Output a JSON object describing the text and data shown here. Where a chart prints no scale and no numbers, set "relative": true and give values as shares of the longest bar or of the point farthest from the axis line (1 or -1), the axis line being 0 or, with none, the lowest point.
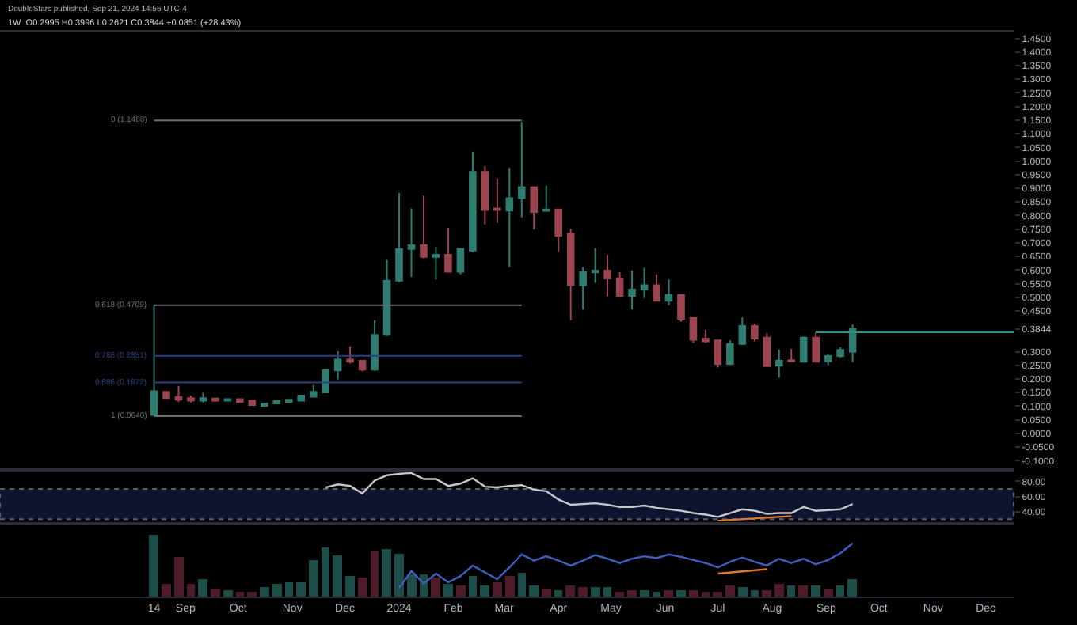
{
  "chart_data": [
    {
      "type": "candlestick",
      "annotations": [
        "DoubleStars published, Sep 21, 2024 14:56 UTC-4",
        "1W  O0.2995 H0.3996 L0.2621 C0.3844 +0.0851 (+28.43%)"
      ],
      "x": [
        "2023-08-14",
        "2023-08-21",
        "2023-08-28",
        "2023-09-04",
        "2023-09-11",
        "2023-09-18",
        "2023-09-25",
        "2023-10-02",
        "2023-10-09",
        "2023-10-16",
        "2023-10-23",
        "2023-10-30",
        "2023-11-06",
        "2023-11-13",
        "2023-11-20",
        "2023-11-27",
        "2023-12-04",
        "2023-12-11",
        "2023-12-18",
        "2023-12-25",
        "2024-01-01",
        "2024-01-08",
        "2024-01-15",
        "2024-01-22",
        "2024-01-29",
        "2024-02-05",
        "2024-02-12",
        "2024-02-19",
        "2024-02-26",
        "2024-03-04",
        "2024-03-11",
        "2024-03-18",
        "2024-03-25",
        "2024-04-01",
        "2024-04-08",
        "2024-04-15",
        "2024-04-22",
        "2024-04-29",
        "2024-05-06",
        "2024-05-13",
        "2024-05-20",
        "2024-05-27",
        "2024-06-03",
        "2024-06-10",
        "2024-06-17",
        "2024-06-24",
        "2024-07-01",
        "2024-07-08",
        "2024-07-15",
        "2024-07-22",
        "2024-07-29",
        "2024-08-05",
        "2024-08-12",
        "2024-08-19",
        "2024-08-26",
        "2024-09-02",
        "2024-09-09",
        "2024-09-16"
      ],
      "ohlc": [
        [
          0.068,
          0.474,
          0.064,
          0.155
        ],
        [
          0.153,
          0.155,
          0.128,
          0.13
        ],
        [
          0.134,
          0.175,
          0.116,
          0.124
        ],
        [
          0.13,
          0.139,
          0.114,
          0.12
        ],
        [
          0.12,
          0.149,
          0.114,
          0.13
        ],
        [
          0.128,
          0.132,
          0.116,
          0.12
        ],
        [
          0.12,
          0.128,
          0.118,
          0.126
        ],
        [
          0.126,
          0.128,
          0.114,
          0.116
        ],
        [
          0.12,
          0.122,
          0.102,
          0.104
        ],
        [
          0.101,
          0.112,
          0.099,
          0.11
        ],
        [
          0.11,
          0.122,
          0.108,
          0.12
        ],
        [
          0.116,
          0.126,
          0.114,
          0.124
        ],
        [
          0.12,
          0.141,
          0.118,
          0.139
        ],
        [
          0.135,
          0.178,
          0.133,
          0.153
        ],
        [
          0.151,
          0.236,
          0.149,
          0.232
        ],
        [
          0.232,
          0.302,
          0.199,
          0.271
        ],
        [
          0.271,
          0.321,
          0.257,
          0.263
        ],
        [
          0.267,
          0.267,
          0.228,
          0.234
        ],
        [
          0.234,
          0.416,
          0.23,
          0.362
        ],
        [
          0.362,
          0.637,
          0.358,
          0.561
        ],
        [
          0.561,
          0.882,
          0.555,
          0.677
        ],
        [
          0.677,
          0.826,
          0.575,
          0.691
        ],
        [
          0.691,
          0.873,
          0.643,
          0.648
        ],
        [
          0.648,
          0.685,
          0.565,
          0.656
        ],
        [
          0.656,
          0.755,
          0.594,
          0.594
        ],
        [
          0.594,
          0.677,
          0.584,
          0.677
        ],
        [
          0.671,
          1.034,
          0.665,
          0.96
        ],
        [
          0.96,
          0.981,
          0.768,
          0.82
        ],
        [
          0.826,
          0.936,
          0.773,
          0.82
        ],
        [
          0.818,
          0.975,
          0.61,
          0.864
        ],
        [
          0.864,
          1.143,
          0.793,
          0.904
        ],
        [
          0.904,
          0.904,
          0.749,
          0.813
        ],
        [
          0.817,
          0.91,
          0.817,
          0.822
        ],
        [
          0.822,
          0.822,
          0.668,
          0.726
        ],
        [
          0.734,
          0.751,
          0.416,
          0.544
        ],
        [
          0.544,
          0.611,
          0.455,
          0.592
        ],
        [
          0.592,
          0.681,
          0.552,
          0.598
        ],
        [
          0.598,
          0.656,
          0.503,
          0.569
        ],
        [
          0.569,
          0.592,
          0.505,
          0.505
        ],
        [
          0.505,
          0.598,
          0.455,
          0.528
        ],
        [
          0.528,
          0.608,
          0.497,
          0.544
        ],
        [
          0.544,
          0.584,
          0.487,
          0.487
        ],
        [
          0.487,
          0.565,
          0.47,
          0.509
        ],
        [
          0.509,
          0.509,
          0.41,
          0.42
        ],
        [
          0.424,
          0.424,
          0.332,
          0.344
        ],
        [
          0.348,
          0.381,
          0.332,
          0.338
        ],
        [
          0.342,
          0.342,
          0.242,
          0.255
        ],
        [
          0.255,
          0.342,
          0.251,
          0.329
        ],
        [
          0.329,
          0.426,
          0.325,
          0.395
        ],
        [
          0.395,
          0.403,
          0.338,
          0.348
        ],
        [
          0.352,
          0.368,
          0.247,
          0.247
        ],
        [
          0.249,
          0.308,
          0.205,
          0.267
        ],
        [
          0.269,
          0.311,
          0.263,
          0.265
        ],
        [
          0.263,
          0.356,
          0.263,
          0.352
        ],
        [
          0.352,
          0.372,
          0.263,
          0.263
        ],
        [
          0.265,
          0.29,
          0.251,
          0.284
        ],
        [
          0.284,
          0.317,
          0.278,
          0.307
        ],
        [
          0.2995,
          0.3996,
          0.2621,
          0.3844
        ]
      ],
      "colors": [
        "#2f7d70",
        "#9c4550",
        "#9c4550",
        "#9c4550",
        "#2f7d70",
        "#9c4550",
        "#2f7d70",
        "#9c4550",
        "#9c4550",
        "#2f7d70",
        "#2f7d70",
        "#2f7d70",
        "#2f7d70",
        "#2f7d70",
        "#2f7d70",
        "#2f7d70",
        "#9c4550",
        "#9c4550",
        "#2f7d70",
        "#2f7d70",
        "#2f7d70",
        "#2f7d70",
        "#9c4550",
        "#2f7d70",
        "#9c4550",
        "#2f7d70",
        "#2f7d70",
        "#9c4550",
        "#9c4550",
        "#2f7d70",
        "#2f7d70",
        "#9c4550",
        "#2f7d70",
        "#9c4550",
        "#9c4550",
        "#2f7d70",
        "#2f7d70",
        "#9c4550",
        "#9c4550",
        "#2f7d70",
        "#2f7d70",
        "#9c4550",
        "#2f7d70",
        "#9c4550",
        "#9c4550",
        "#9c4550",
        "#9c4550",
        "#2f7d70",
        "#2f7d70",
        "#9c4550",
        "#9c4550",
        "#2f7d70",
        "#9c4550",
        "#2f7d70",
        "#9c4550",
        "#2f7d70",
        "#2f7d70",
        "#2f7d70"
      ],
      "series": [
        {
          "type": "line",
          "color": "#2f8f86",
          "x": [
            "2024-08-26",
            "2024-12-17"
          ],
          "values": [
            0.372,
            0.372
          ]
        }
      ],
      "ref_lines": [
        {
          "axis": "y",
          "value": 1.1488,
          "label": "0 (1.1488)",
          "color": "#6b6e78"
        },
        {
          "axis": "y",
          "value": 0.4709,
          "label": "0.618 (0.4709)",
          "color": "#6b6e78"
        },
        {
          "axis": "y",
          "value": 0.2851,
          "label": "0.786 (0.2851)",
          "color": "#2c3f86"
        },
        {
          "axis": "y",
          "value": 0.1872,
          "label": "0.886 (0.1872)",
          "color": "#2c3f86"
        },
        {
          "axis": "y",
          "value": 0.064,
          "label": "1 (0.0640)",
          "color": "#6b6e78"
        }
      ],
      "xlim": [
        "2023-05-18",
        "2024-12-17"
      ],
      "ylim": [
        -0.128,
        1.475
      ],
      "yticks": [
        {
          "value": -0.1,
          "label": "-0.1000"
        },
        {
          "value": -0.05,
          "label": "-0.0500"
        },
        {
          "value": 0,
          "label": "0.0000"
        },
        {
          "value": 0.05,
          "label": "0.0500"
        },
        {
          "value": 0.1,
          "label": "0.1000"
        },
        {
          "value": 0.15,
          "label": "0.1500"
        },
        {
          "value": 0.2,
          "label": "0.2000"
        },
        {
          "value": 0.25,
          "label": "0.2500"
        },
        {
          "value": 0.3,
          "label": "0.3000"
        },
        {
          "value": 0.3844,
          "label": "0.3844"
        },
        {
          "value": 0.45,
          "label": "0.4500"
        },
        {
          "value": 0.5,
          "label": "0.5000"
        },
        {
          "value": 0.55,
          "label": "0.5500"
        },
        {
          "value": 0.6,
          "label": "0.6000"
        },
        {
          "value": 0.65,
          "label": "0.6500"
        },
        {
          "value": 0.7,
          "label": "0.7000"
        },
        {
          "value": 0.75,
          "label": "0.7500"
        },
        {
          "value": 0.8,
          "label": "0.8000"
        },
        {
          "value": 0.85,
          "label": "0.8500"
        },
        {
          "value": 0.9,
          "label": "0.9000"
        },
        {
          "value": 0.95,
          "label": "0.9500"
        },
        {
          "value": 1.0,
          "label": "1.0000"
        },
        {
          "value": 1.05,
          "label": "1.0500"
        },
        {
          "value": 1.1,
          "label": "1.1000"
        },
        {
          "value": 1.15,
          "label": "1.1500"
        },
        {
          "value": 1.2,
          "label": "1.2000"
        },
        {
          "value": 1.25,
          "label": "1.2500"
        },
        {
          "value": 1.3,
          "label": "1.3000"
        },
        {
          "value": 1.35,
          "label": "1.3500"
        },
        {
          "value": 1.4,
          "label": "1.4000"
        },
        {
          "value": 1.45,
          "label": "1.4500"
        }
      ],
      "tick_labels": "y",
      "grid": false
    },
    {
      "type": "line",
      "series": [
        {
          "color": "#c8c8cc",
          "x": [
            "2023-11-20",
            "2023-11-27",
            "2023-12-04",
            "2023-12-11",
            "2023-12-18",
            "2023-12-25",
            "2024-01-01",
            "2024-01-08",
            "2024-01-15",
            "2024-01-22",
            "2024-01-29",
            "2024-02-05",
            "2024-02-12",
            "2024-02-19",
            "2024-02-26",
            "2024-03-04",
            "2024-03-11",
            "2024-03-18",
            "2024-03-25",
            "2024-04-01",
            "2024-04-08",
            "2024-04-15",
            "2024-04-22",
            "2024-04-29",
            "2024-05-06",
            "2024-05-13",
            "2024-05-20",
            "2024-05-27",
            "2024-06-03",
            "2024-06-10",
            "2024-06-17",
            "2024-06-24",
            "2024-07-01",
            "2024-07-08",
            "2024-07-15",
            "2024-07-22",
            "2024-07-29",
            "2024-08-05",
            "2024-08-12",
            "2024-08-19",
            "2024-08-26",
            "2024-09-02",
            "2024-09-09",
            "2024-09-16"
          ],
          "values": [
            72,
            76,
            74,
            64,
            81,
            88,
            90,
            91,
            83,
            83,
            74,
            77,
            84,
            73,
            72,
            74,
            75,
            69,
            67,
            56,
            49,
            50,
            51,
            49,
            46,
            46,
            48,
            45,
            43,
            41,
            38,
            36,
            33,
            38,
            43,
            41,
            37,
            38,
            38,
            46,
            41,
            42,
            43,
            50
          ]
        },
        {
          "color": "#e0782a",
          "x": [
            "2024-07-01",
            "2024-08-12"
          ],
          "values": [
            28,
            34
          ]
        }
      ],
      "bands": [
        {
          "axis": "y",
          "from": 30,
          "to": 70,
          "color": "#0e1430"
        }
      ],
      "xlim": [
        "2023-05-18",
        "2024-12-17"
      ],
      "ylim": [
        26,
        93
      ],
      "yticks": [
        {
          "value": 40,
          "label": "40.00"
        },
        {
          "value": 60,
          "label": "60.00"
        },
        {
          "value": 80,
          "label": "80.00"
        }
      ],
      "tick_labels": "y",
      "grid": false,
      "marker": "none"
    },
    {
      "type": "bar",
      "relative": true,
      "x": [
        "2023-08-14",
        "2023-08-21",
        "2023-08-28",
        "2023-09-04",
        "2023-09-11",
        "2023-09-18",
        "2023-09-25",
        "2023-10-02",
        "2023-10-09",
        "2023-10-16",
        "2023-10-23",
        "2023-10-30",
        "2023-11-06",
        "2023-11-13",
        "2023-11-20",
        "2023-11-27",
        "2023-12-04",
        "2023-12-11",
        "2023-12-18",
        "2023-12-25",
        "2024-01-01",
        "2024-01-08",
        "2024-01-15",
        "2024-01-22",
        "2024-01-29",
        "2024-02-05",
        "2024-02-12",
        "2024-02-19",
        "2024-02-26",
        "2024-03-04",
        "2024-03-11",
        "2024-03-18",
        "2024-03-25",
        "2024-04-01",
        "2024-04-08",
        "2024-04-15",
        "2024-04-22",
        "2024-04-29",
        "2024-05-06",
        "2024-05-13",
        "2024-05-20",
        "2024-05-27",
        "2024-06-03",
        "2024-06-10",
        "2024-06-17",
        "2024-06-24",
        "2024-07-01",
        "2024-07-08",
        "2024-07-15",
        "2024-07-22",
        "2024-07-29",
        "2024-08-05",
        "2024-08-12",
        "2024-08-19",
        "2024-08-26",
        "2024-09-02",
        "2024-09-09",
        "2024-09-16"
      ],
      "series": [
        {
          "type": "bar",
          "colors": [
            "#1d4d48",
            "#4d1c28",
            "#4d1c28",
            "#4d1c28",
            "#1d4d48",
            "#4d1c28",
            "#1d4d48",
            "#4d1c28",
            "#4d1c28",
            "#1d4d48",
            "#1d4d48",
            "#1d4d48",
            "#1d4d48",
            "#1d4d48",
            "#1d4d48",
            "#1d4d48",
            "#1d4d48",
            "#4d1c28",
            "#4d1c28",
            "#1d4d48",
            "#1d4d48",
            "#1d4d48",
            "#1d4d48",
            "#4d1c28",
            "#1d4d48",
            "#4d1c28",
            "#1d4d48",
            "#1d4d48",
            "#4d1c28",
            "#4d1c28",
            "#1d4d48",
            "#1d4d48",
            "#4d1c28",
            "#1d4d48",
            "#4d1c28",
            "#4d1c28",
            "#1d4d48",
            "#1d4d48",
            "#4d1c28",
            "#4d1c28",
            "#1d4d48",
            "#1d4d48",
            "#4d1c28",
            "#1d4d48",
            "#4d1c28",
            "#4d1c28",
            "#4d1c28",
            "#4d1c28",
            "#1d4d48",
            "#1d4d48",
            "#4d1c28",
            "#4d1c28",
            "#1d4d48",
            "#4d1c28",
            "#1d4d48",
            "#4d1c28",
            "#1d4d48",
            "#1d4d48"
          ],
          "values": [
            1.0,
            0.21,
            0.65,
            0.21,
            0.29,
            0.13,
            0.1,
            0.08,
            0.07,
            0.15,
            0.21,
            0.22,
            0.23,
            0.58,
            0.79,
            0.67,
            0.34,
            0.3,
            0.75,
            0.77,
            0.69,
            0.37,
            0.35,
            0.3,
            0.21,
            0.19,
            0.32,
            0.19,
            0.23,
            0.34,
            0.38,
            0.19,
            0.13,
            0.1,
            0.17,
            0.16,
            0.15,
            0.16,
            0.07,
            0.1,
            0.1,
            0.08,
            0.1,
            0.1,
            0.1,
            0.07,
            0.07,
            0.17,
            0.16,
            0.11,
            0.11,
            0.2,
            0.17,
            0.17,
            0.19,
            0.14,
            0.19,
            0.28
          ]
        },
        {
          "type": "line",
          "color": "#3f5fc0",
          "x": [
            "2024-01-01",
            "2024-01-08",
            "2024-01-15",
            "2024-01-22",
            "2024-01-29",
            "2024-02-05",
            "2024-02-12",
            "2024-02-19",
            "2024-02-26",
            "2024-03-04",
            "2024-03-11",
            "2024-03-18",
            "2024-03-25",
            "2024-04-01",
            "2024-04-08",
            "2024-04-15",
            "2024-04-22",
            "2024-04-29",
            "2024-05-06",
            "2024-05-13",
            "2024-05-20",
            "2024-05-27",
            "2024-06-03",
            "2024-06-10",
            "2024-06-17",
            "2024-06-24",
            "2024-07-01",
            "2024-07-08",
            "2024-07-15",
            "2024-07-22",
            "2024-07-29",
            "2024-08-05",
            "2024-08-12",
            "2024-08-19",
            "2024-08-26",
            "2024-09-02",
            "2024-09-09",
            "2024-09-16"
          ],
          "values": [
            0.14,
            0.41,
            0.21,
            0.37,
            0.23,
            0.33,
            0.5,
            0.39,
            0.28,
            0.47,
            0.68,
            0.58,
            0.65,
            0.58,
            0.5,
            0.58,
            0.67,
            0.61,
            0.54,
            0.61,
            0.65,
            0.62,
            0.68,
            0.64,
            0.59,
            0.54,
            0.47,
            0.56,
            0.63,
            0.56,
            0.5,
            0.61,
            0.54,
            0.61,
            0.52,
            0.59,
            0.7,
            0.86
          ]
        },
        {
          "type": "line",
          "color": "#e0782a",
          "x": [
            "2024-07-01",
            "2024-07-29"
          ],
          "values": [
            0.37,
            0.44
          ]
        }
      ],
      "xlim": [
        "2023-05-18",
        "2024-12-17"
      ],
      "xticks": [
        {
          "value": "2023-08-14",
          "label": "14"
        },
        {
          "value": "2023-09-01",
          "label": "Sep"
        },
        {
          "value": "2023-10-01",
          "label": "Oct"
        },
        {
          "value": "2023-11-01",
          "label": "Nov"
        },
        {
          "value": "2023-12-01",
          "label": "Dec"
        },
        {
          "value": "2024-01-01",
          "label": "2024"
        },
        {
          "value": "2024-02-01",
          "label": "Feb"
        },
        {
          "value": "2024-03-01",
          "label": "Mar"
        },
        {
          "value": "2024-04-01",
          "label": "Apr"
        },
        {
          "value": "2024-05-01",
          "label": "May"
        },
        {
          "value": "2024-06-01",
          "label": "Jun"
        },
        {
          "value": "2024-07-01",
          "label": "Jul"
        },
        {
          "value": "2024-08-01",
          "label": "Aug"
        },
        {
          "value": "2024-09-01",
          "label": "Sep"
        },
        {
          "value": "2024-10-01",
          "label": "Oct"
        },
        {
          "value": "2024-11-01",
          "label": "Nov"
        },
        {
          "value": "2024-12-01",
          "label": "Dec"
        }
      ],
      "tick_labels": "x",
      "grid": false
    }
  ]
}
